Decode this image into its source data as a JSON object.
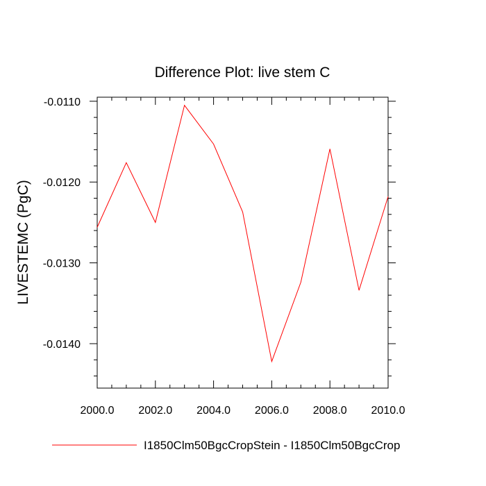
{
  "chart_data": {
    "type": "line",
    "title": "Difference Plot: live stem C",
    "xlabel": "",
    "ylabel": "LIVESTEMC  (PgC)",
    "xlim": [
      2000.0,
      2010.0
    ],
    "ylim": [
      -0.01455,
      -0.01095
    ],
    "x_ticks": [
      "2000.0",
      "2002.0",
      "2004.0",
      "2006.0",
      "2008.0",
      "2010.0"
    ],
    "x_tick_values": [
      2000,
      2002,
      2004,
      2006,
      2008,
      2010
    ],
    "y_ticks": [
      "-0.0110",
      "-0.0120",
      "-0.0130",
      "-0.0140"
    ],
    "y_tick_values": [
      -0.011,
      -0.012,
      -0.013,
      -0.014
    ],
    "grid": false,
    "legend_position": "bottom",
    "series": [
      {
        "name": "I1850Clm50BgcCropStein - I1850Clm50BgcCrop",
        "color": "#ff0000",
        "x": [
          2000,
          2001,
          2002,
          2003,
          2004,
          2005,
          2006,
          2007,
          2008,
          2009,
          2010
        ],
        "values": [
          -0.01256,
          -0.01176,
          -0.0125,
          -0.01105,
          -0.01153,
          -0.01237,
          -0.01422,
          -0.01324,
          -0.01159,
          -0.01334,
          -0.01218
        ]
      }
    ]
  }
}
